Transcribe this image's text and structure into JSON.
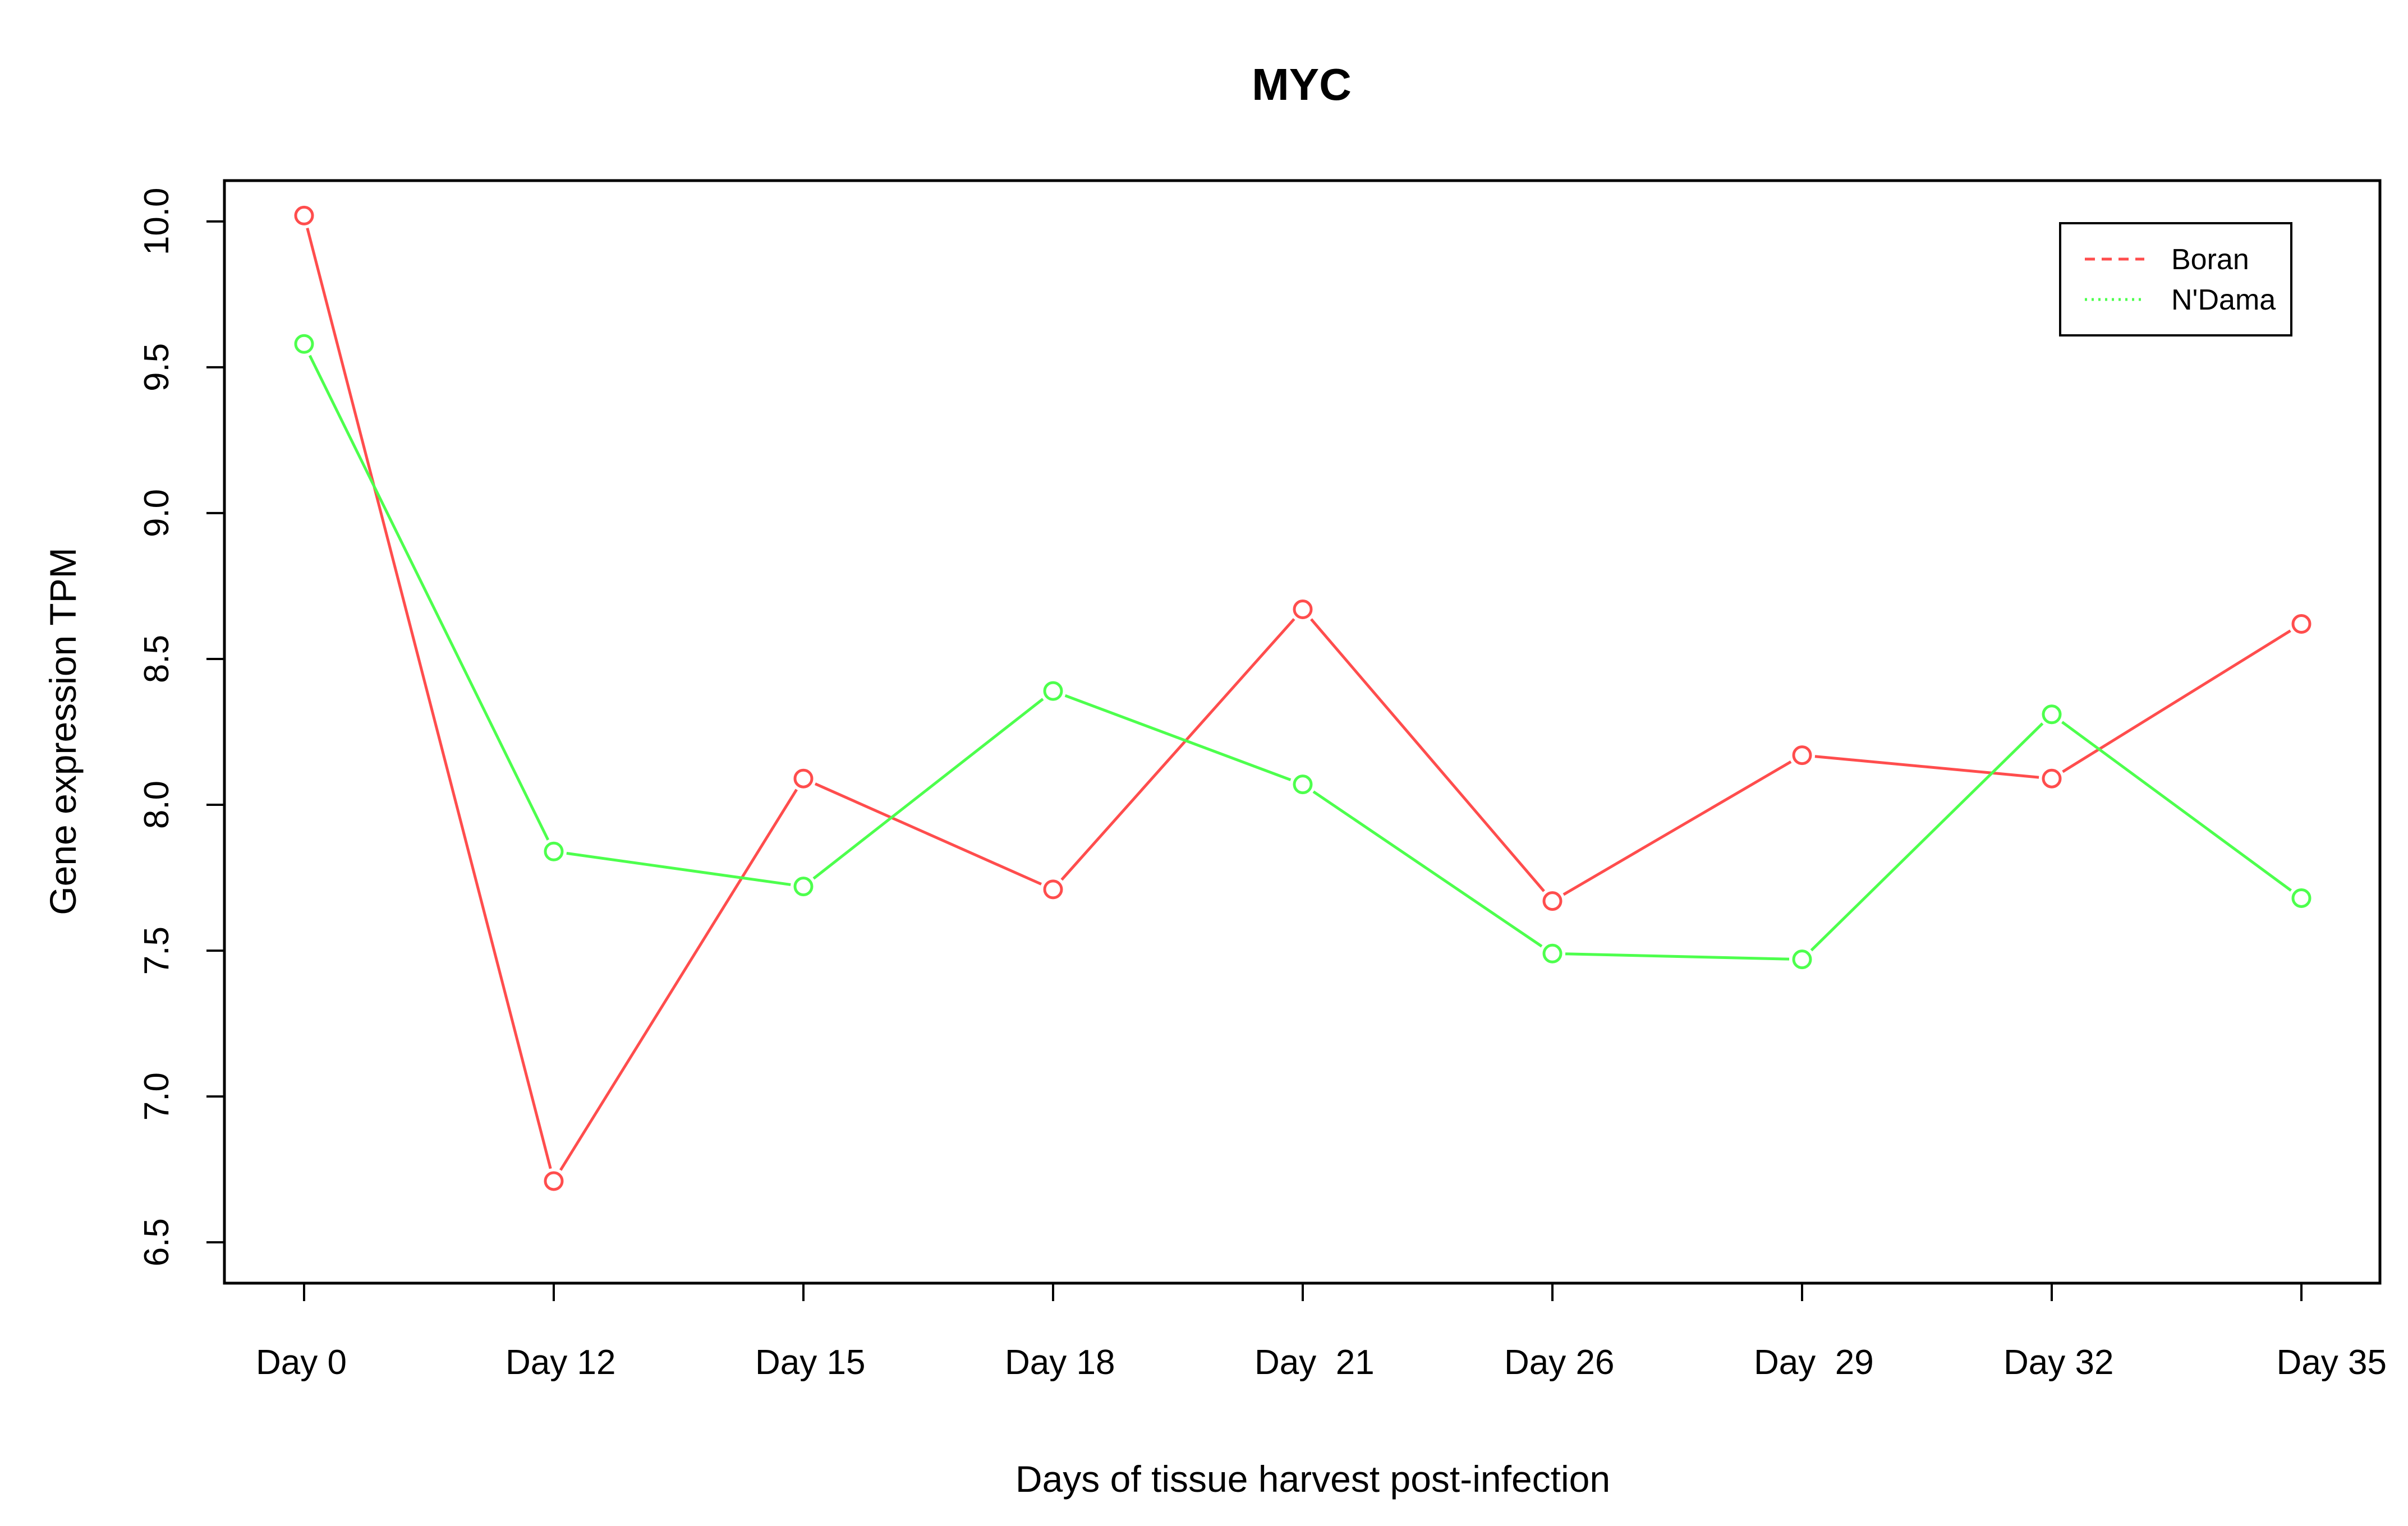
{
  "chart_data": {
    "type": "line",
    "title": "MYC",
    "xlabel": "Days of tissue harvest post-infection",
    "ylabel": "Gene expression TPM",
    "categories": [
      "Day 0",
      "Day 12",
      "Day 15",
      "Day 18",
      "Day  21",
      "Day 26",
      "Day  29",
      "Day 32",
      "Day 35"
    ],
    "y_ticks": [
      "6.5",
      "7.0",
      "7.5",
      "8.0",
      "8.5",
      "9.0",
      "9.5",
      "10.0"
    ],
    "ylim": [
      6.36,
      10.14
    ],
    "grid": false,
    "legend_position": "top-right",
    "series": [
      {
        "name": "Boran",
        "color": "#ff4d4d",
        "legend_line_style": "dashed",
        "values": [
          10.02,
          6.71,
          8.09,
          7.71,
          8.67,
          7.67,
          8.17,
          8.09,
          8.62
        ]
      },
      {
        "name": "N'Dama",
        "color": "#4dff4d",
        "legend_line_style": "dotted",
        "values": [
          9.58,
          7.84,
          7.72,
          8.39,
          8.07,
          7.49,
          7.47,
          8.31,
          7.68
        ]
      }
    ]
  }
}
